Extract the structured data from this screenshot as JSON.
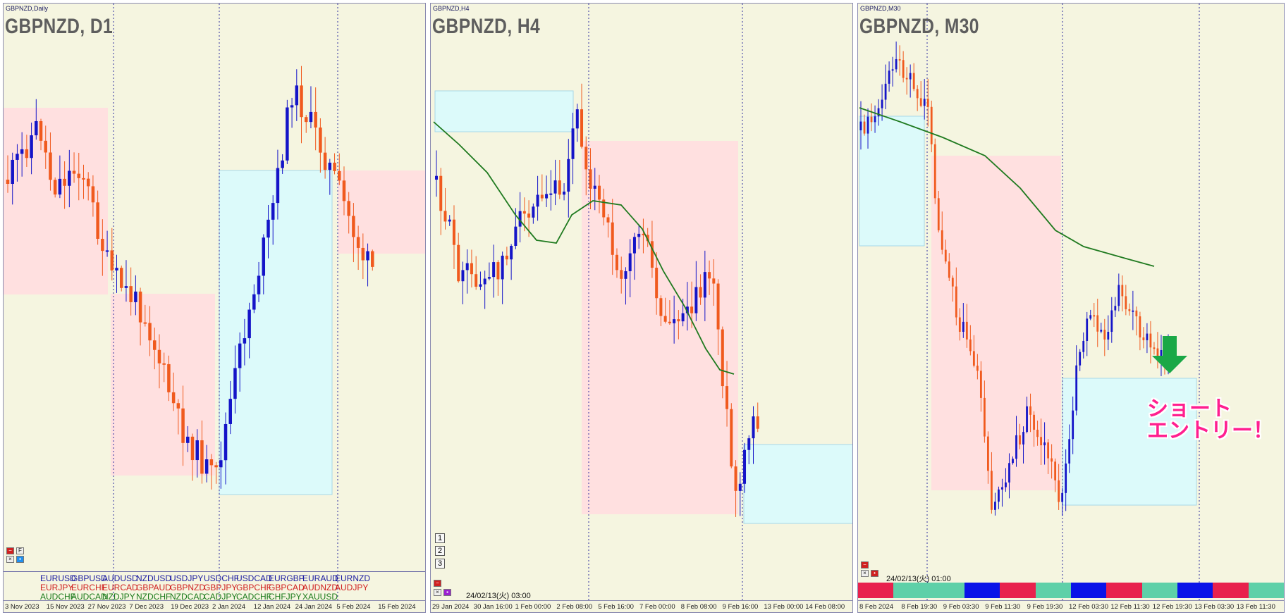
{
  "panels": [
    {
      "id": "p1",
      "window_title": "GBPNZD,Daily",
      "title": "GBPNZD, D1",
      "dates": [
        "3 Nov 2023",
        "15 Nov 2023",
        "27 Nov 2023",
        "7 Dec 2023",
        "19 Dec 2023",
        "2 Jan 2024",
        "12 Jan 2024",
        "24 Jan 2024",
        "5 Feb 2024",
        "15 Feb 2024"
      ],
      "mini_buttons": [
        "−",
        "F",
        "×",
        "▪"
      ]
    },
    {
      "id": "p2",
      "window_title": "GBPNZD,H4",
      "title": "GBPNZD, H4",
      "dates": [
        "29 Jan 2024",
        "30 Jan 16:00",
        "1 Feb 00:00",
        "2 Feb 08:00",
        "5 Feb 16:00",
        "7 Feb 00:00",
        "8 Feb 08:00",
        "9 Feb 16:00",
        "13 Feb 00:00",
        "14 Feb 08:00"
      ],
      "num_buttons": [
        "1",
        "2",
        "3"
      ],
      "timestamp": "24/02/13(火) 03:00"
    },
    {
      "id": "p3",
      "window_title": "GBPNZD,M30",
      "title": "GBPNZD, M30",
      "dates": [
        "8 Feb 2024",
        "8 Feb 19:30",
        "9 Feb 03:30",
        "9 Feb 11:30",
        "9 Feb 19:30",
        "12 Feb 03:30",
        "12 Feb 11:30",
        "12 Feb 19:30",
        "13 Feb 03:30",
        "13 Feb 11:30"
      ],
      "timestamp": "24/02/13(火) 01:00",
      "annotation_line1": "ショート",
      "annotation_line2": "エントリー！"
    }
  ],
  "currency_pairs": [
    [
      {
        "t": "EURUSD",
        "c": "#1a1aa0"
      },
      {
        "t": "GBPUSD",
        "c": "#1a1aa0"
      },
      {
        "t": "AUDUSD",
        "c": "#1a1aa0"
      },
      {
        "t": "NZDUSD",
        "c": "#1a1aa0"
      },
      {
        "t": "USDJPY",
        "c": "#1a1aa0"
      },
      {
        "t": "USDCHF",
        "c": "#1a1aa0"
      },
      {
        "t": "USDCAD",
        "c": "#1a1aa0"
      },
      {
        "t": "EURGBP",
        "c": "#1a1aa0"
      },
      {
        "t": "EURAUD",
        "c": "#1a1aa0"
      },
      {
        "t": "EURNZD",
        "c": "#1a1aa0"
      }
    ],
    [
      {
        "t": "EURJPY",
        "c": "#d02020"
      },
      {
        "t": "EURCHF",
        "c": "#d02020"
      },
      {
        "t": "EURCAD",
        "c": "#d02020"
      },
      {
        "t": "GBPAUD",
        "c": "#d02020"
      },
      {
        "t": "GBPNZD",
        "c": "#d02020"
      },
      {
        "t": "GBPJPY",
        "c": "#d02020"
      },
      {
        "t": "GBPCHF",
        "c": "#d02020"
      },
      {
        "t": "GBPCAD",
        "c": "#d02020"
      },
      {
        "t": "AUDNZD",
        "c": "#d02020"
      },
      {
        "t": "AUDJPY",
        "c": "#d02020"
      }
    ],
    [
      {
        "t": "AUDCHF",
        "c": "#1a7a1a"
      },
      {
        "t": "AUDCAD",
        "c": "#1a7a1a"
      },
      {
        "t": "NZDJPY",
        "c": "#1a7a1a"
      },
      {
        "t": "NZDCHF",
        "c": "#1a7a1a"
      },
      {
        "t": "NZDCAD",
        "c": "#1a7a1a"
      },
      {
        "t": "CADJPY",
        "c": "#1a7a1a"
      },
      {
        "t": "CADCHF",
        "c": "#1a7a1a"
      },
      {
        "t": "CHFJPY",
        "c": "#1a7a1a"
      },
      {
        "t": "XAUUSD",
        "c": "#1a7a1a"
      }
    ]
  ],
  "colorbar": [
    "#e8214d",
    "#5ed0a8",
    "#5ed0a8",
    "#0a14e8",
    "#e8214d",
    "#5ed0a8",
    "#0a14e8",
    "#e8214d",
    "#5ed0a8",
    "#0a14e8",
    "#e8214d",
    "#5ed0a8"
  ],
  "colors": {
    "bull": "#1414c8",
    "bear": "#f05a1e",
    "ma": "#1f7a1f",
    "supply_zone": "#ffe0e0",
    "demand_zone": "#dcfafa",
    "arrow": "#1aa847",
    "background": "#f5f5e0"
  }
}
